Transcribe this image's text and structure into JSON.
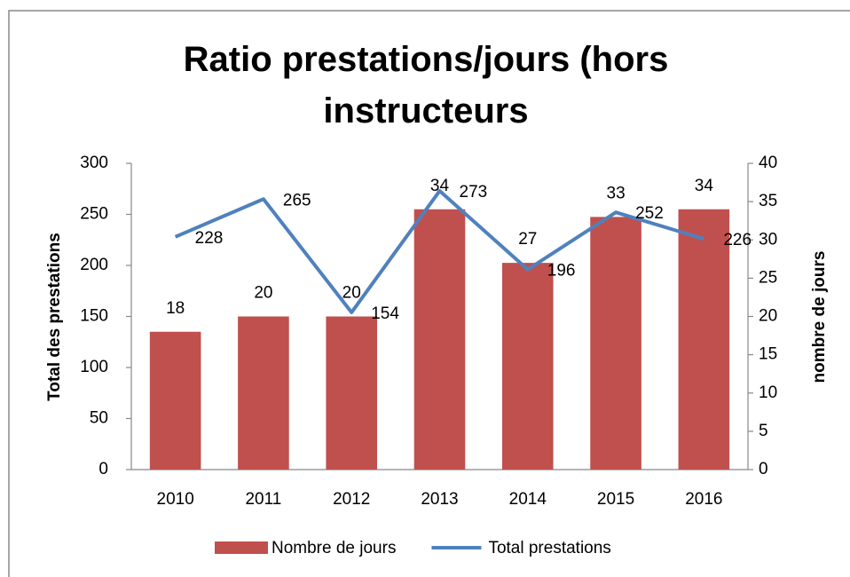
{
  "chart_data": {
    "type": "bar",
    "title": "Ratio prestations/jours (hors instructeurs",
    "categories": [
      "2010",
      "2011",
      "2012",
      "2013",
      "2014",
      "2015",
      "2016"
    ],
    "series": [
      {
        "name": "Nombre de jours",
        "type": "bar",
        "axis": "y2",
        "color": "#c0504d",
        "values": [
          18,
          20,
          20,
          34,
          27,
          33,
          34
        ]
      },
      {
        "name": "Total prestations",
        "type": "line",
        "axis": "y",
        "color": "#4f81bd",
        "values": [
          228,
          265,
          154,
          273,
          196,
          252,
          226
        ]
      }
    ],
    "ylabel": "Total des prestations",
    "y2label": "nombre de jours",
    "ylim": [
      0,
      300
    ],
    "yticks": [
      0,
      50,
      100,
      150,
      200,
      250,
      300
    ],
    "y2lim": [
      0,
      40
    ],
    "y2ticks": [
      0,
      5,
      10,
      15,
      20,
      25,
      30,
      35,
      40
    ],
    "legend": "bottom",
    "grid": false
  }
}
